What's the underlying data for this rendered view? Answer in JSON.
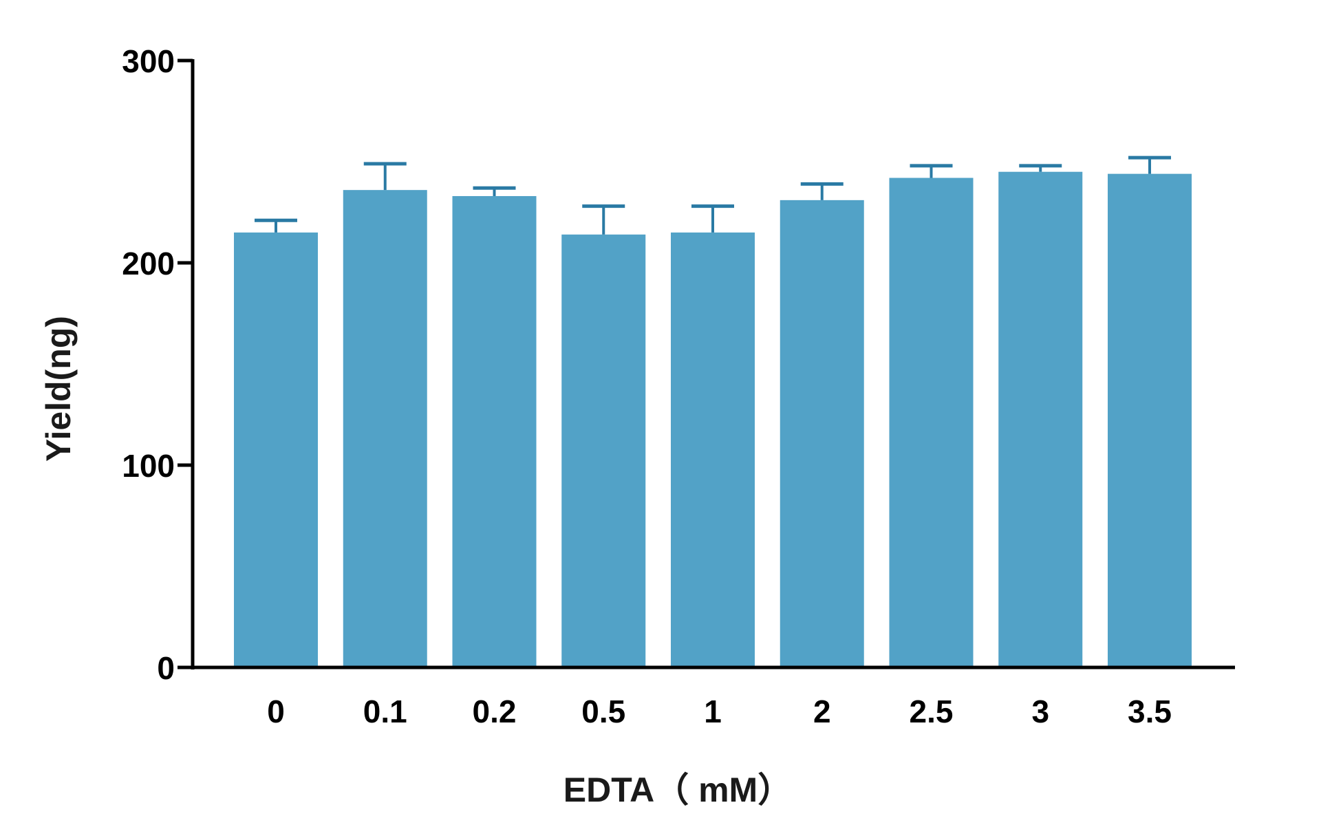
{
  "chart_data": {
    "type": "bar",
    "title": "",
    "xlabel": "EDTA（ mM）",
    "ylabel": "Yield(ng)",
    "categories": [
      "0",
      "0.1",
      "0.2",
      "0.5",
      "1",
      "2",
      "2.5",
      "3",
      "3.5"
    ],
    "series": [
      {
        "values": [
          215,
          236,
          233,
          214,
          215,
          231,
          242,
          245,
          244
        ],
        "error_upper": [
          6,
          13,
          4,
          14,
          13,
          8,
          6,
          3,
          8
        ]
      }
    ],
    "ylim": [
      0,
      300
    ],
    "yticks": [
      "0",
      "100",
      "200",
      "300"
    ],
    "grid": false,
    "legend": "none",
    "colors": {
      "bar": "#52a2c7",
      "error_bar": "#2a7aa4",
      "axis": "#000000"
    }
  }
}
